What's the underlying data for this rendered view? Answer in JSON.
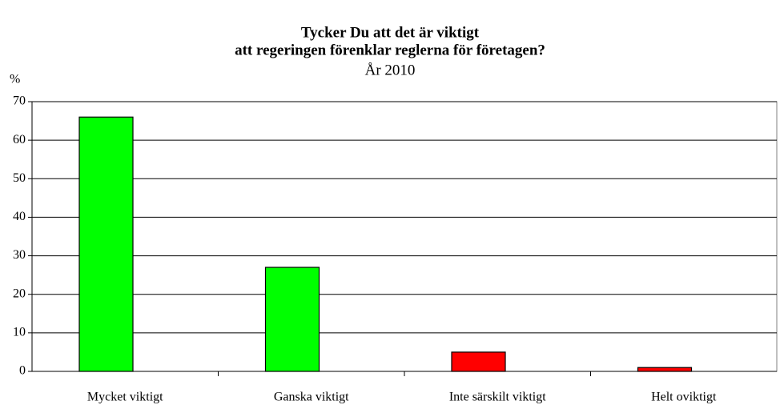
{
  "chart_data": {
    "type": "bar",
    "title": [
      "Tycker Du att det är viktigt",
      "att regeringen förenklar reglerna för företagen?"
    ],
    "subtitle": "År 2010",
    "y_label": "%",
    "categories": [
      "Mycket viktigt",
      "Ganska viktigt",
      "Inte särskilt viktigt",
      "Helt oviktigt"
    ],
    "values": [
      66,
      27,
      5,
      1
    ],
    "colors": [
      "#00ff00",
      "#00ff00",
      "#ff0000",
      "#ff0000"
    ],
    "ylim": [
      0,
      70
    ],
    "yticks": [
      0,
      10,
      20,
      30,
      40,
      50,
      60,
      70
    ],
    "grid": true
  }
}
